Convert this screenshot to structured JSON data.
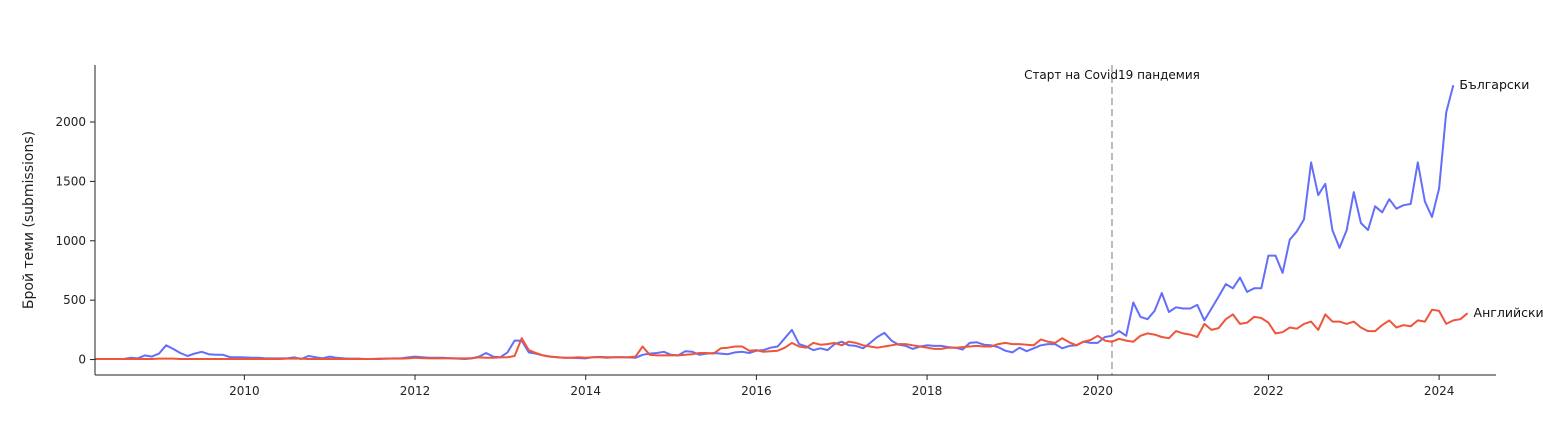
{
  "chart_data": {
    "type": "line",
    "title": "",
    "xlabel": "",
    "ylabel": "Брой теми (submissions)",
    "xlim": [
      "2008-04",
      "2024-09"
    ],
    "ylim": [
      -130,
      2480
    ],
    "x_ticks": [
      "2010",
      "2012",
      "2014",
      "2016",
      "2018",
      "2020",
      "2022",
      "2024"
    ],
    "y_ticks": [
      0,
      500,
      1000,
      1500,
      2000
    ],
    "grid": false,
    "annotations": [
      {
        "type": "vline",
        "x": "2020-03",
        "label": "Старт на Covid19 пандемия",
        "color": "#bbbbbb",
        "dash": true
      }
    ],
    "series": [
      {
        "name": "Български",
        "color": "#636efa",
        "start": "2008-04",
        "values": [
          5,
          5,
          5,
          5,
          5,
          15,
          10,
          35,
          25,
          50,
          120,
          90,
          55,
          30,
          50,
          65,
          45,
          40,
          40,
          20,
          20,
          18,
          15,
          15,
          10,
          10,
          10,
          10,
          18,
          5,
          30,
          20,
          10,
          25,
          15,
          10,
          8,
          8,
          5,
          5,
          5,
          8,
          10,
          10,
          18,
          25,
          20,
          15,
          15,
          15,
          10,
          8,
          5,
          10,
          25,
          55,
          25,
          20,
          60,
          160,
          160,
          60,
          50,
          35,
          25,
          20,
          15,
          15,
          12,
          10,
          20,
          22,
          20,
          20,
          20,
          18,
          15,
          40,
          50,
          55,
          65,
          40,
          35,
          70,
          65,
          40,
          50,
          55,
          50,
          45,
          60,
          65,
          55,
          75,
          80,
          100,
          110,
          180,
          250,
          130,
          110,
          80,
          95,
          80,
          130,
          150,
          120,
          115,
          95,
          140,
          190,
          225,
          160,
          125,
          115,
          90,
          110,
          120,
          115,
          115,
          105,
          100,
          85,
          140,
          145,
          125,
          120,
          105,
          75,
          60,
          100,
          70,
          95,
          120,
          130,
          130,
          95,
          115,
          120,
          150,
          140,
          140,
          190,
          200,
          240,
          200,
          480,
          360,
          340,
          410,
          560,
          400,
          440,
          430,
          430,
          460,
          330,
          430,
          530,
          635,
          600,
          690,
          570,
          600,
          600,
          875,
          875,
          730,
          1010,
          1080,
          1180,
          1660,
          1385,
          1480,
          1090,
          940,
          1090,
          1410,
          1150,
          1090,
          1290,
          1240,
          1350,
          1270,
          1300,
          1310,
          1660,
          1330,
          1200,
          1440,
          2080,
          2310
        ]
      },
      {
        "name": "Английски",
        "color": "#ef553b",
        "start": "2008-04",
        "values": [
          5,
          5,
          5,
          5,
          5,
          5,
          5,
          5,
          5,
          8,
          8,
          8,
          5,
          5,
          5,
          5,
          5,
          5,
          5,
          5,
          5,
          5,
          5,
          5,
          5,
          5,
          5,
          8,
          8,
          8,
          5,
          5,
          5,
          5,
          5,
          5,
          5,
          5,
          5,
          5,
          8,
          8,
          8,
          8,
          10,
          15,
          12,
          10,
          10,
          10,
          12,
          10,
          10,
          12,
          18,
          15,
          15,
          18,
          20,
          30,
          180,
          80,
          55,
          35,
          25,
          20,
          15,
          15,
          20,
          15,
          20,
          20,
          15,
          20,
          20,
          20,
          25,
          110,
          40,
          35,
          35,
          35,
          35,
          40,
          45,
          55,
          55,
          50,
          95,
          100,
          110,
          110,
          75,
          80,
          65,
          70,
          75,
          100,
          140,
          110,
          100,
          140,
          125,
          130,
          140,
          120,
          150,
          140,
          120,
          110,
          100,
          110,
          120,
          130,
          130,
          120,
          110,
          100,
          90,
          90,
          100,
          100,
          105,
          110,
          115,
          110,
          110,
          130,
          140,
          130,
          130,
          125,
          120,
          170,
          150,
          140,
          180,
          145,
          120,
          150,
          165,
          200,
          160,
          150,
          175,
          160,
          150,
          200,
          220,
          210,
          190,
          180,
          240,
          220,
          210,
          190,
          300,
          250,
          265,
          340,
          380,
          300,
          310,
          360,
          350,
          310,
          220,
          230,
          270,
          260,
          300,
          320,
          250,
          380,
          320,
          320,
          300,
          320,
          270,
          240,
          240,
          290,
          330,
          270,
          290,
          280,
          330,
          320,
          420,
          410,
          300,
          330,
          340,
          390
        ]
      }
    ]
  }
}
